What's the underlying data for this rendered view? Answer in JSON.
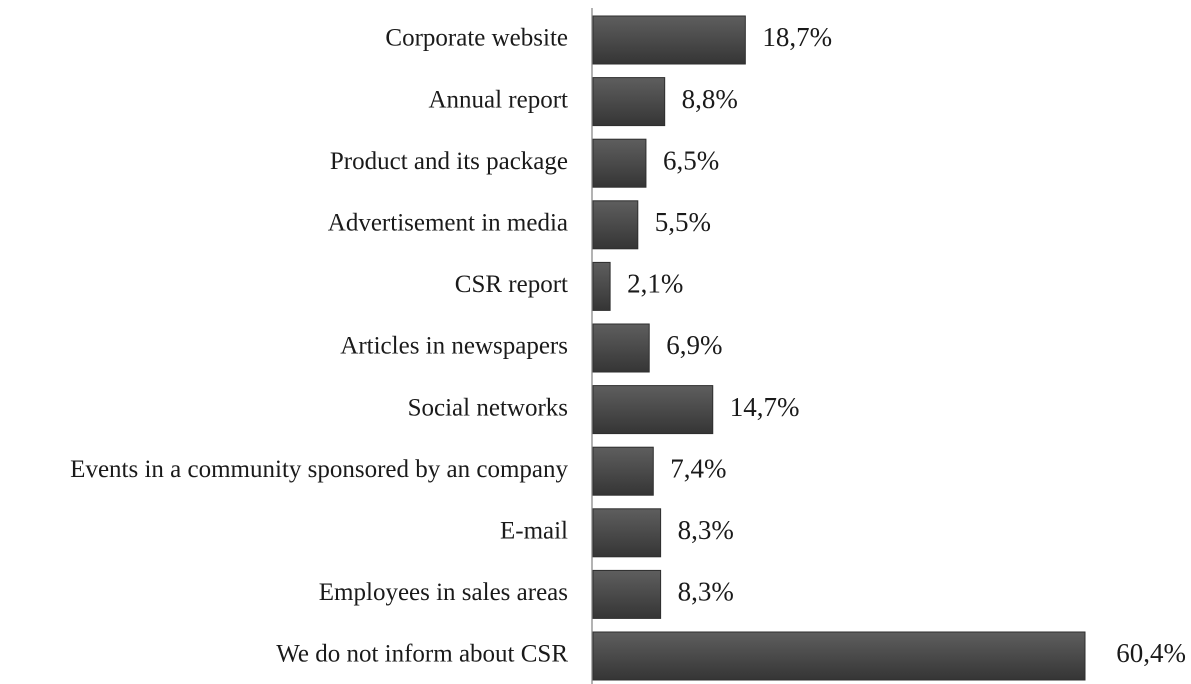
{
  "chart_data": {
    "type": "bar",
    "orientation": "horizontal",
    "title": "",
    "xlabel": "",
    "ylabel": "",
    "categories": [
      "Corporate website",
      "Annual report",
      "Product and its package",
      "Advertisement in media",
      "CSR report",
      "Articles in newspapers",
      "Social networks",
      "Events in a community sponsored by an company",
      "E-mail",
      "Employees in sales areas",
      "We do not inform about CSR"
    ],
    "values": [
      18.7,
      8.8,
      6.5,
      5.5,
      2.1,
      6.9,
      14.7,
      7.4,
      8.3,
      8.3,
      60.4
    ],
    "value_labels": [
      "18,7%",
      "8,8%",
      "6,5%",
      "5,5%",
      "2,1%",
      "6,9%",
      "14,7%",
      "7,4%",
      "8,3%",
      "8,3%",
      "60,4%"
    ],
    "xlim": [
      0,
      60.4
    ],
    "grid": false,
    "legend": "none",
    "bar_color": "#4a4a4a",
    "bar_edge_color": "#2e2e2e"
  }
}
